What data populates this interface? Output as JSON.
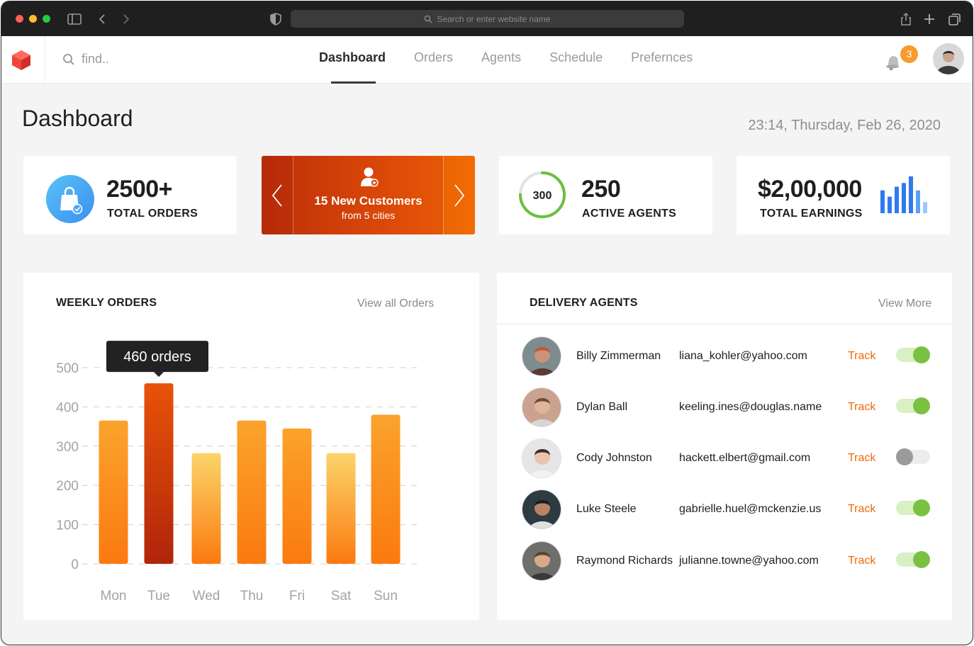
{
  "browser": {
    "address_placeholder": "Search or enter website name"
  },
  "nav": {
    "search_placeholder": "find..",
    "tabs": [
      {
        "label": "Dashboard",
        "active": true
      },
      {
        "label": "Orders",
        "active": false
      },
      {
        "label": "Agents",
        "active": false
      },
      {
        "label": "Schedule",
        "active": false
      },
      {
        "label": "Prefernces",
        "active": false
      }
    ],
    "notification_count": "3",
    "accent_color": "#f79a30"
  },
  "header": {
    "title": "Dashboard",
    "datetime": "23:14, Thursday, Feb 26, 2020"
  },
  "stats": {
    "orders": {
      "value": "2500+",
      "label": "TOTAL ORDERS"
    },
    "promo": {
      "title": "15 New Customers",
      "subtitle": "from 5 cities"
    },
    "agents": {
      "ring_value": "300",
      "ring_fraction": 0.75,
      "value": "250",
      "label": "ACTIVE AGENTS"
    },
    "earnings": {
      "value": "$2,00,000",
      "label": "TOTAL EARNINGS",
      "mini_bars": [
        0.62,
        0.45,
        0.72,
        0.82,
        1.0,
        0.62,
        0.3
      ]
    }
  },
  "weekly": {
    "title": "WEEKLY ORDERS",
    "link": "View all Orders",
    "tooltip": "460 orders"
  },
  "chart_data": {
    "type": "bar",
    "title": "WEEKLY ORDERS",
    "categories": [
      "Mon",
      "Tue",
      "Wed",
      "Thu",
      "Fri",
      "Sat",
      "Sun"
    ],
    "values": [
      365,
      460,
      282,
      365,
      345,
      282,
      380
    ],
    "highlighted_index": 1,
    "yticks": [
      0,
      100,
      200,
      300,
      400,
      500
    ],
    "ylim": [
      0,
      500
    ],
    "grid": true,
    "xlabel": "",
    "ylabel": ""
  },
  "agents": {
    "title": "DELIVERY AGENTS",
    "link": "View More",
    "track_label": "Track",
    "rows": [
      {
        "name": "Billy Zimmerman",
        "email": "liana_kohler@yahoo.com",
        "active": true
      },
      {
        "name": "Dylan Ball",
        "email": "keeling.ines@douglas.name",
        "active": true
      },
      {
        "name": "Cody Johnston",
        "email": "hackett.elbert@gmail.com",
        "active": false
      },
      {
        "name": "Luke Steele",
        "email": "gabrielle.huel@mckenzie.us",
        "active": true
      },
      {
        "name": "Raymond Richards",
        "email": "julianne.towne@yahoo.com",
        "active": true
      }
    ]
  }
}
